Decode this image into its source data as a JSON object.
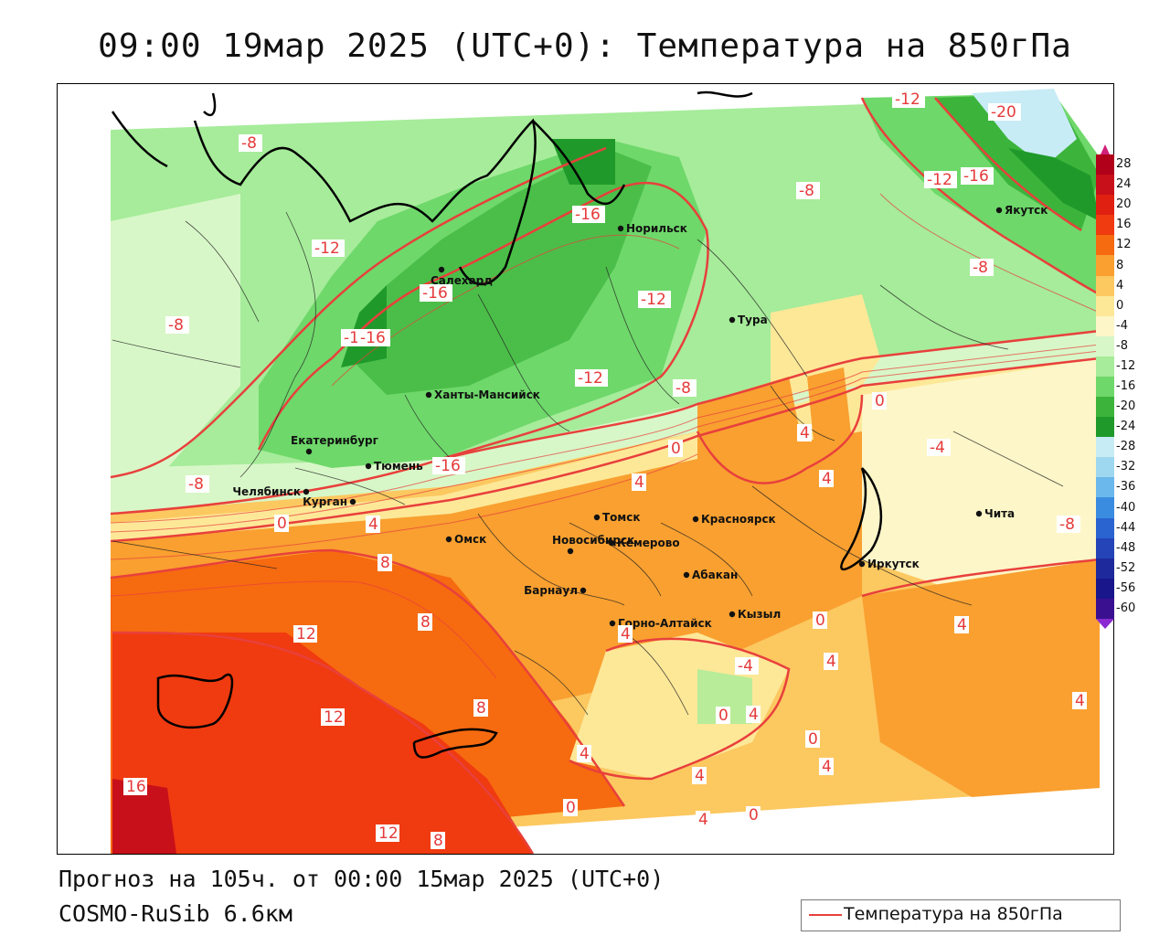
{
  "title": "09:00 19мар 2025 (UTC+0): Температура на 850гПа",
  "footer": {
    "forecast": "Прогноз на 105ч. от 00:00 15мар 2025 (UTC+0)",
    "model": "COSMO-RuSib 6.6км"
  },
  "legend": {
    "label": "Температура на 850гПа",
    "line_color": "#e8403c"
  },
  "colorbar": {
    "labels": [
      "28",
      "24",
      "20",
      "16",
      "12",
      "8",
      "4",
      "0",
      "-4",
      "-8",
      "-12",
      "-16",
      "-20",
      "-24",
      "-28",
      "-32",
      "-36",
      "-40",
      "-44",
      "-48",
      "-52",
      "-56",
      "-60"
    ],
    "colors": [
      "#b0001a",
      "#c8101a",
      "#e02010",
      "#f03a10",
      "#f66a10",
      "#f9a030",
      "#fcc860",
      "#fde898",
      "#fdf6c8",
      "#d8f7c8",
      "#a6ec9a",
      "#6ed86a",
      "#3cb43c",
      "#1f9a2a",
      "#c8ecf6",
      "#9ed8f0",
      "#6ab8ec",
      "#3a8ce0",
      "#2a64d0",
      "#2444b8",
      "#1e2a9c",
      "#18168a",
      "#3a1090"
    ],
    "top_color": "#d0207a",
    "bottom_color": "#8a2ad0"
  },
  "cities": [
    {
      "name": "Норильск"
    },
    {
      "name": "Якутск"
    },
    {
      "name": "Салехард"
    },
    {
      "name": "Тура"
    },
    {
      "name": "Ханты-Мансийск"
    },
    {
      "name": "Екатеринбург"
    },
    {
      "name": "Тюмень"
    },
    {
      "name": "Челябинск"
    },
    {
      "name": "Курган"
    },
    {
      "name": "Томск"
    },
    {
      "name": "Красноярск"
    },
    {
      "name": "Омск"
    },
    {
      "name": "Новосибирск"
    },
    {
      "name": "Кемерово"
    },
    {
      "name": "Абакан"
    },
    {
      "name": "Барнаул"
    },
    {
      "name": "Горно-Алтайск"
    },
    {
      "name": "Кызыл"
    },
    {
      "name": "Иркутск"
    },
    {
      "name": "Чита"
    }
  ],
  "contour_labels": [
    "-8",
    "-12",
    "-20",
    "-12",
    "-16",
    "-8",
    "-16",
    "-12",
    "-8",
    "-16",
    "-12",
    "-16",
    "-8",
    "-12",
    "-8",
    "-16",
    "-8",
    "-16",
    "0",
    "-4",
    "4",
    "4",
    "4",
    "0",
    "0",
    "4",
    "8",
    "8",
    "12",
    "8",
    "12",
    "16",
    "12",
    "8",
    "4",
    "4",
    "0",
    "4",
    "0",
    "-4",
    "4",
    "0",
    "4",
    "4",
    "4",
    "4",
    "0",
    "4",
    "0",
    "-8"
  ]
}
